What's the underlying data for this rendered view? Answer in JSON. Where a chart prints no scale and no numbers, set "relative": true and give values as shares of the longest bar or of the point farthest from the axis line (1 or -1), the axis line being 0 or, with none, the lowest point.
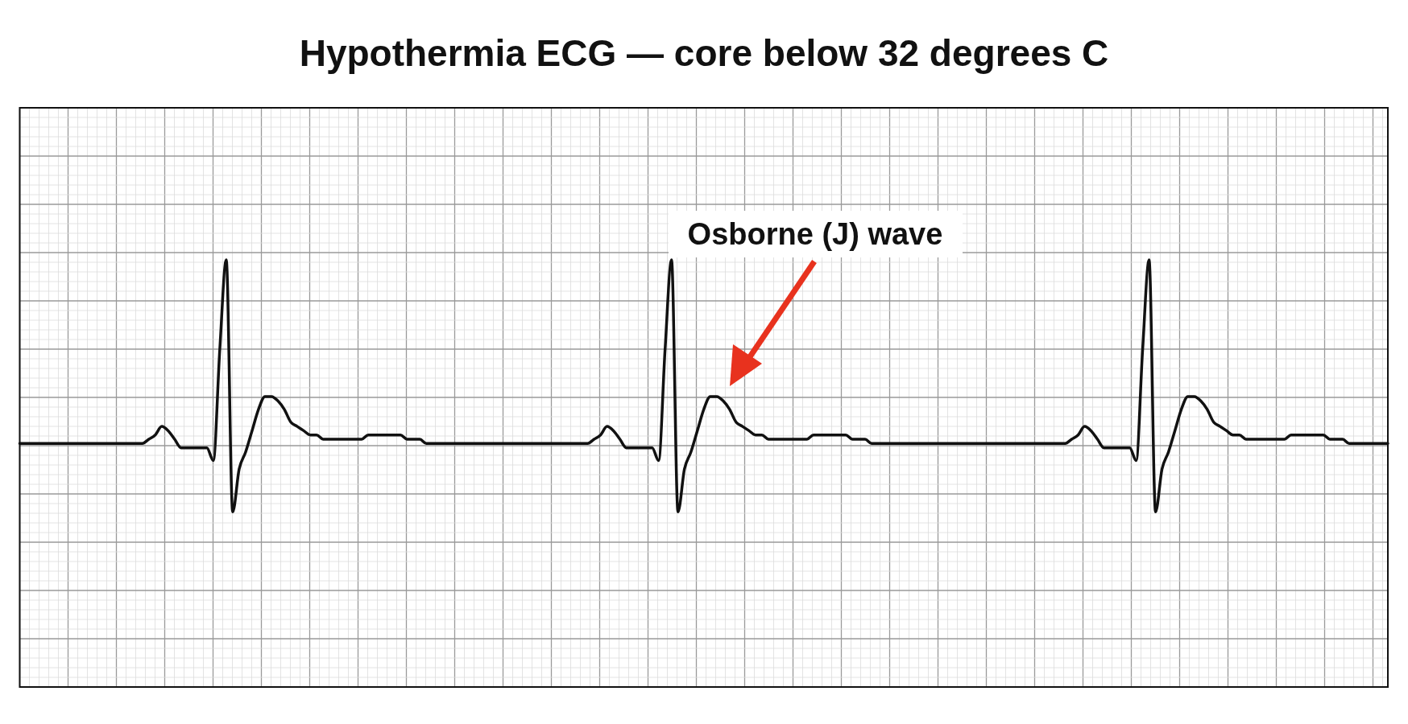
{
  "chart_data": {
    "type": "line",
    "title": "Hypothermia ECG — core below 32 degrees C",
    "relative": true,
    "grid": true,
    "color": "#111111",
    "annotations": [
      "Osborne (J) wave"
    ],
    "categories": [
      null,
      null,
      null,
      null,
      null,
      null,
      null,
      null,
      null,
      null,
      null,
      null,
      null,
      null,
      null,
      null,
      null,
      null,
      null,
      null,
      null,
      null,
      null,
      null,
      null,
      null,
      null,
      null,
      null,
      null,
      null,
      null,
      null,
      null,
      null,
      null,
      null,
      null,
      null,
      null,
      null,
      null,
      null,
      null,
      null,
      null,
      null,
      null,
      null,
      null,
      null,
      null,
      null,
      null,
      null,
      null,
      null,
      null,
      null,
      null,
      null,
      null,
      null,
      null,
      null,
      null,
      null,
      null,
      null,
      null,
      null,
      null,
      null,
      null,
      null,
      null,
      null,
      null,
      null,
      null,
      null,
      null,
      null,
      null,
      null,
      null,
      null,
      null,
      null,
      null,
      null,
      null,
      null,
      null,
      null,
      null,
      null,
      null,
      null,
      null,
      null,
      null,
      null,
      null,
      null,
      null,
      null,
      null,
      null,
      null,
      null,
      null,
      null,
      null,
      null,
      null,
      null,
      null,
      null,
      null,
      null,
      null,
      null,
      null,
      null,
      null,
      null,
      null,
      null,
      null,
      null,
      null,
      null,
      null,
      null,
      null,
      null,
      null,
      null,
      null,
      null,
      null,
      null,
      null,
      null,
      null,
      null,
      null,
      null,
      null,
      null,
      null,
      null,
      null,
      null,
      null,
      null,
      null,
      null,
      null,
      null,
      null,
      null,
      null,
      null,
      null,
      null,
      null,
      null,
      null,
      null,
      null,
      null,
      null,
      null,
      null,
      null,
      null,
      null,
      null,
      null,
      null,
      null,
      null,
      null,
      null,
      null,
      null,
      null,
      null,
      null,
      null,
      null,
      null,
      null,
      null,
      null,
      null,
      null,
      null,
      null,
      null,
      null,
      null,
      null,
      null,
      null,
      null,
      null,
      null,
      null,
      null,
      null
    ],
    "values": [
      0.57,
      0.57,
      0.57,
      0.57,
      0.57,
      0.57,
      0.57,
      0.57,
      0.57,
      0.57,
      0.57,
      0.57,
      0.57,
      0.57,
      0.57,
      0.57,
      0.57,
      0.57,
      0.57,
      0.57,
      0.58,
      0.59,
      0.61,
      0.6,
      0.58,
      0.56,
      0.56,
      0.56,
      0.56,
      0.56,
      0.53,
      0.79,
      1,
      0.41,
      0.51,
      0.55,
      0.6,
      0.65,
      0.68,
      0.68,
      0.67,
      0.65,
      0.62,
      0.61,
      0.6,
      0.59,
      0.59,
      0.58,
      0.58,
      0.58,
      0.58,
      0.58,
      0.58,
      0.58,
      0.59,
      0.59,
      0.59,
      0.59,
      0.59,
      0.59,
      0.58,
      0.58,
      0.58,
      0.57,
      0.57,
      0.57,
      0.57,
      0.57,
      0.57,
      0.57,
      0.57,
      0.57,
      0.57,
      0.57,
      0.57,
      0.57,
      0.57,
      0.57,
      0.57,
      0.57,
      0.57,
      0.57,
      0.57,
      0.57,
      0.57,
      0.57,
      0.57,
      0.57,
      0.57,
      0.58,
      0.59,
      0.61,
      0.6,
      0.58,
      0.56,
      0.56,
      0.56,
      0.56,
      0.56,
      0.53,
      0.79,
      1,
      0.41,
      0.51,
      0.55,
      0.6,
      0.65,
      0.68,
      0.68,
      0.67,
      0.65,
      0.62,
      0.61,
      0.6,
      0.59,
      0.59,
      0.58,
      0.58,
      0.58,
      0.58,
      0.58,
      0.58,
      0.58,
      0.59,
      0.59,
      0.59,
      0.59,
      0.59,
      0.59,
      0.58,
      0.58,
      0.58,
      0.57,
      0.57,
      0.57,
      0.57,
      0.57,
      0.57,
      0.57,
      0.57,
      0.57,
      0.57,
      0.57,
      0.57,
      0.57,
      0.57,
      0.57,
      0.57,
      0.57,
      0.57,
      0.57,
      0.57,
      0.57,
      0.57,
      0.57,
      0.57,
      0.57,
      0.57,
      0.57,
      0.57,
      0.57,
      0.57,
      0.57,
      0.58,
      0.59,
      0.61,
      0.6,
      0.58,
      0.56,
      0.56,
      0.56,
      0.56,
      0.56,
      0.53,
      0.79,
      1,
      0.41,
      0.51,
      0.55,
      0.6,
      0.65,
      0.68,
      0.68,
      0.67,
      0.65,
      0.62,
      0.61,
      0.6,
      0.59,
      0.59,
      0.58,
      0.58,
      0.58,
      0.58,
      0.58,
      0.58,
      0.58,
      0.59,
      0.59,
      0.59,
      0.59,
      0.59,
      0.59,
      0.58,
      0.58,
      0.58,
      0.57,
      0.57,
      0.57,
      0.57,
      0.57,
      0.57,
      0.57
    ]
  }
}
